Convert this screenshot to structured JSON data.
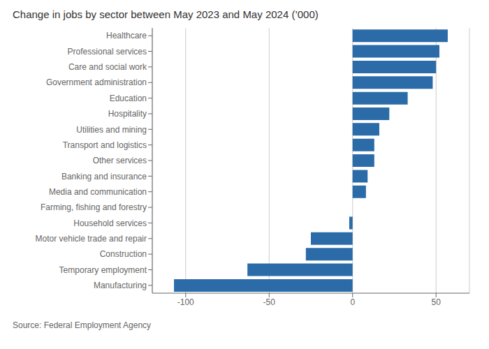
{
  "chart_data": {
    "type": "bar",
    "orientation": "horizontal",
    "title": "Change in jobs by sector between May 2023 and May 2024 (’000)",
    "source": "Source: Federal Employment Agency",
    "categories": [
      "Manufacturing",
      "Temporary employment",
      "Construction",
      "Motor vehicle trade and repair",
      "Household services",
      "Farming, fishing and forestry",
      "Media and communication",
      "Banking and insurance",
      "Other services",
      "Transport and logistics",
      "Utilities and mining",
      "Hospitality",
      "Education",
      "Government administration",
      "Care and social work",
      "Professional services",
      "Healthcare"
    ],
    "values": [
      -107,
      -63,
      -28,
      -25,
      -2,
      0,
      8,
      9,
      13,
      13,
      16,
      22,
      33,
      48,
      50,
      52,
      57
    ],
    "color": "#2B6BA8",
    "xlim": [
      -120,
      70
    ],
    "xticks": [
      -100,
      -50,
      0,
      50
    ],
    "grid": true
  }
}
